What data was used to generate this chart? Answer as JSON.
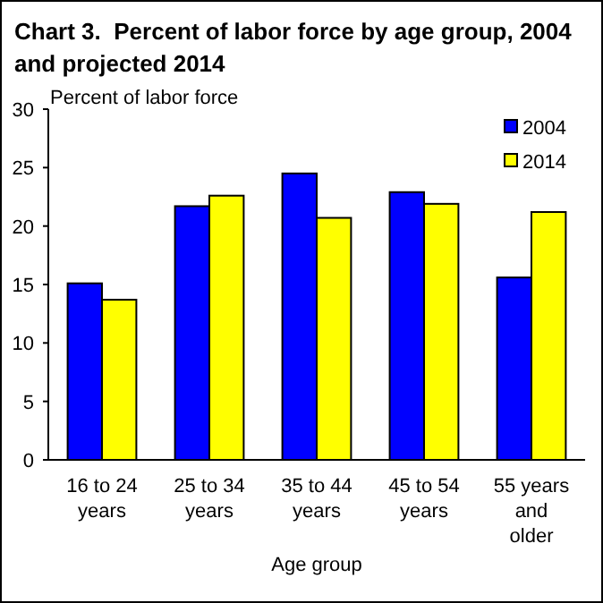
{
  "chart_data": {
    "type": "bar",
    "title": "Chart 3.  Percent of labor force by age group, 2004 and projected 2014",
    "ylabel": "Percent of labor force",
    "xlabel": "Age group",
    "categories": [
      "16 to 24 years",
      "25 to 34 years",
      "35 to 44 years",
      "45 to 54 years",
      "55 years and older"
    ],
    "series": [
      {
        "name": "2004",
        "color": "#0000ff",
        "values": [
          15.1,
          21.7,
          24.5,
          22.9,
          15.6
        ]
      },
      {
        "name": "2014",
        "color": "#ffff00",
        "values": [
          13.7,
          22.6,
          20.7,
          21.9,
          21.2
        ]
      }
    ],
    "ylim": [
      0,
      30
    ],
    "yticks": [
      0,
      5,
      10,
      15,
      20,
      25,
      30
    ],
    "grid": false,
    "legend": "top right"
  }
}
